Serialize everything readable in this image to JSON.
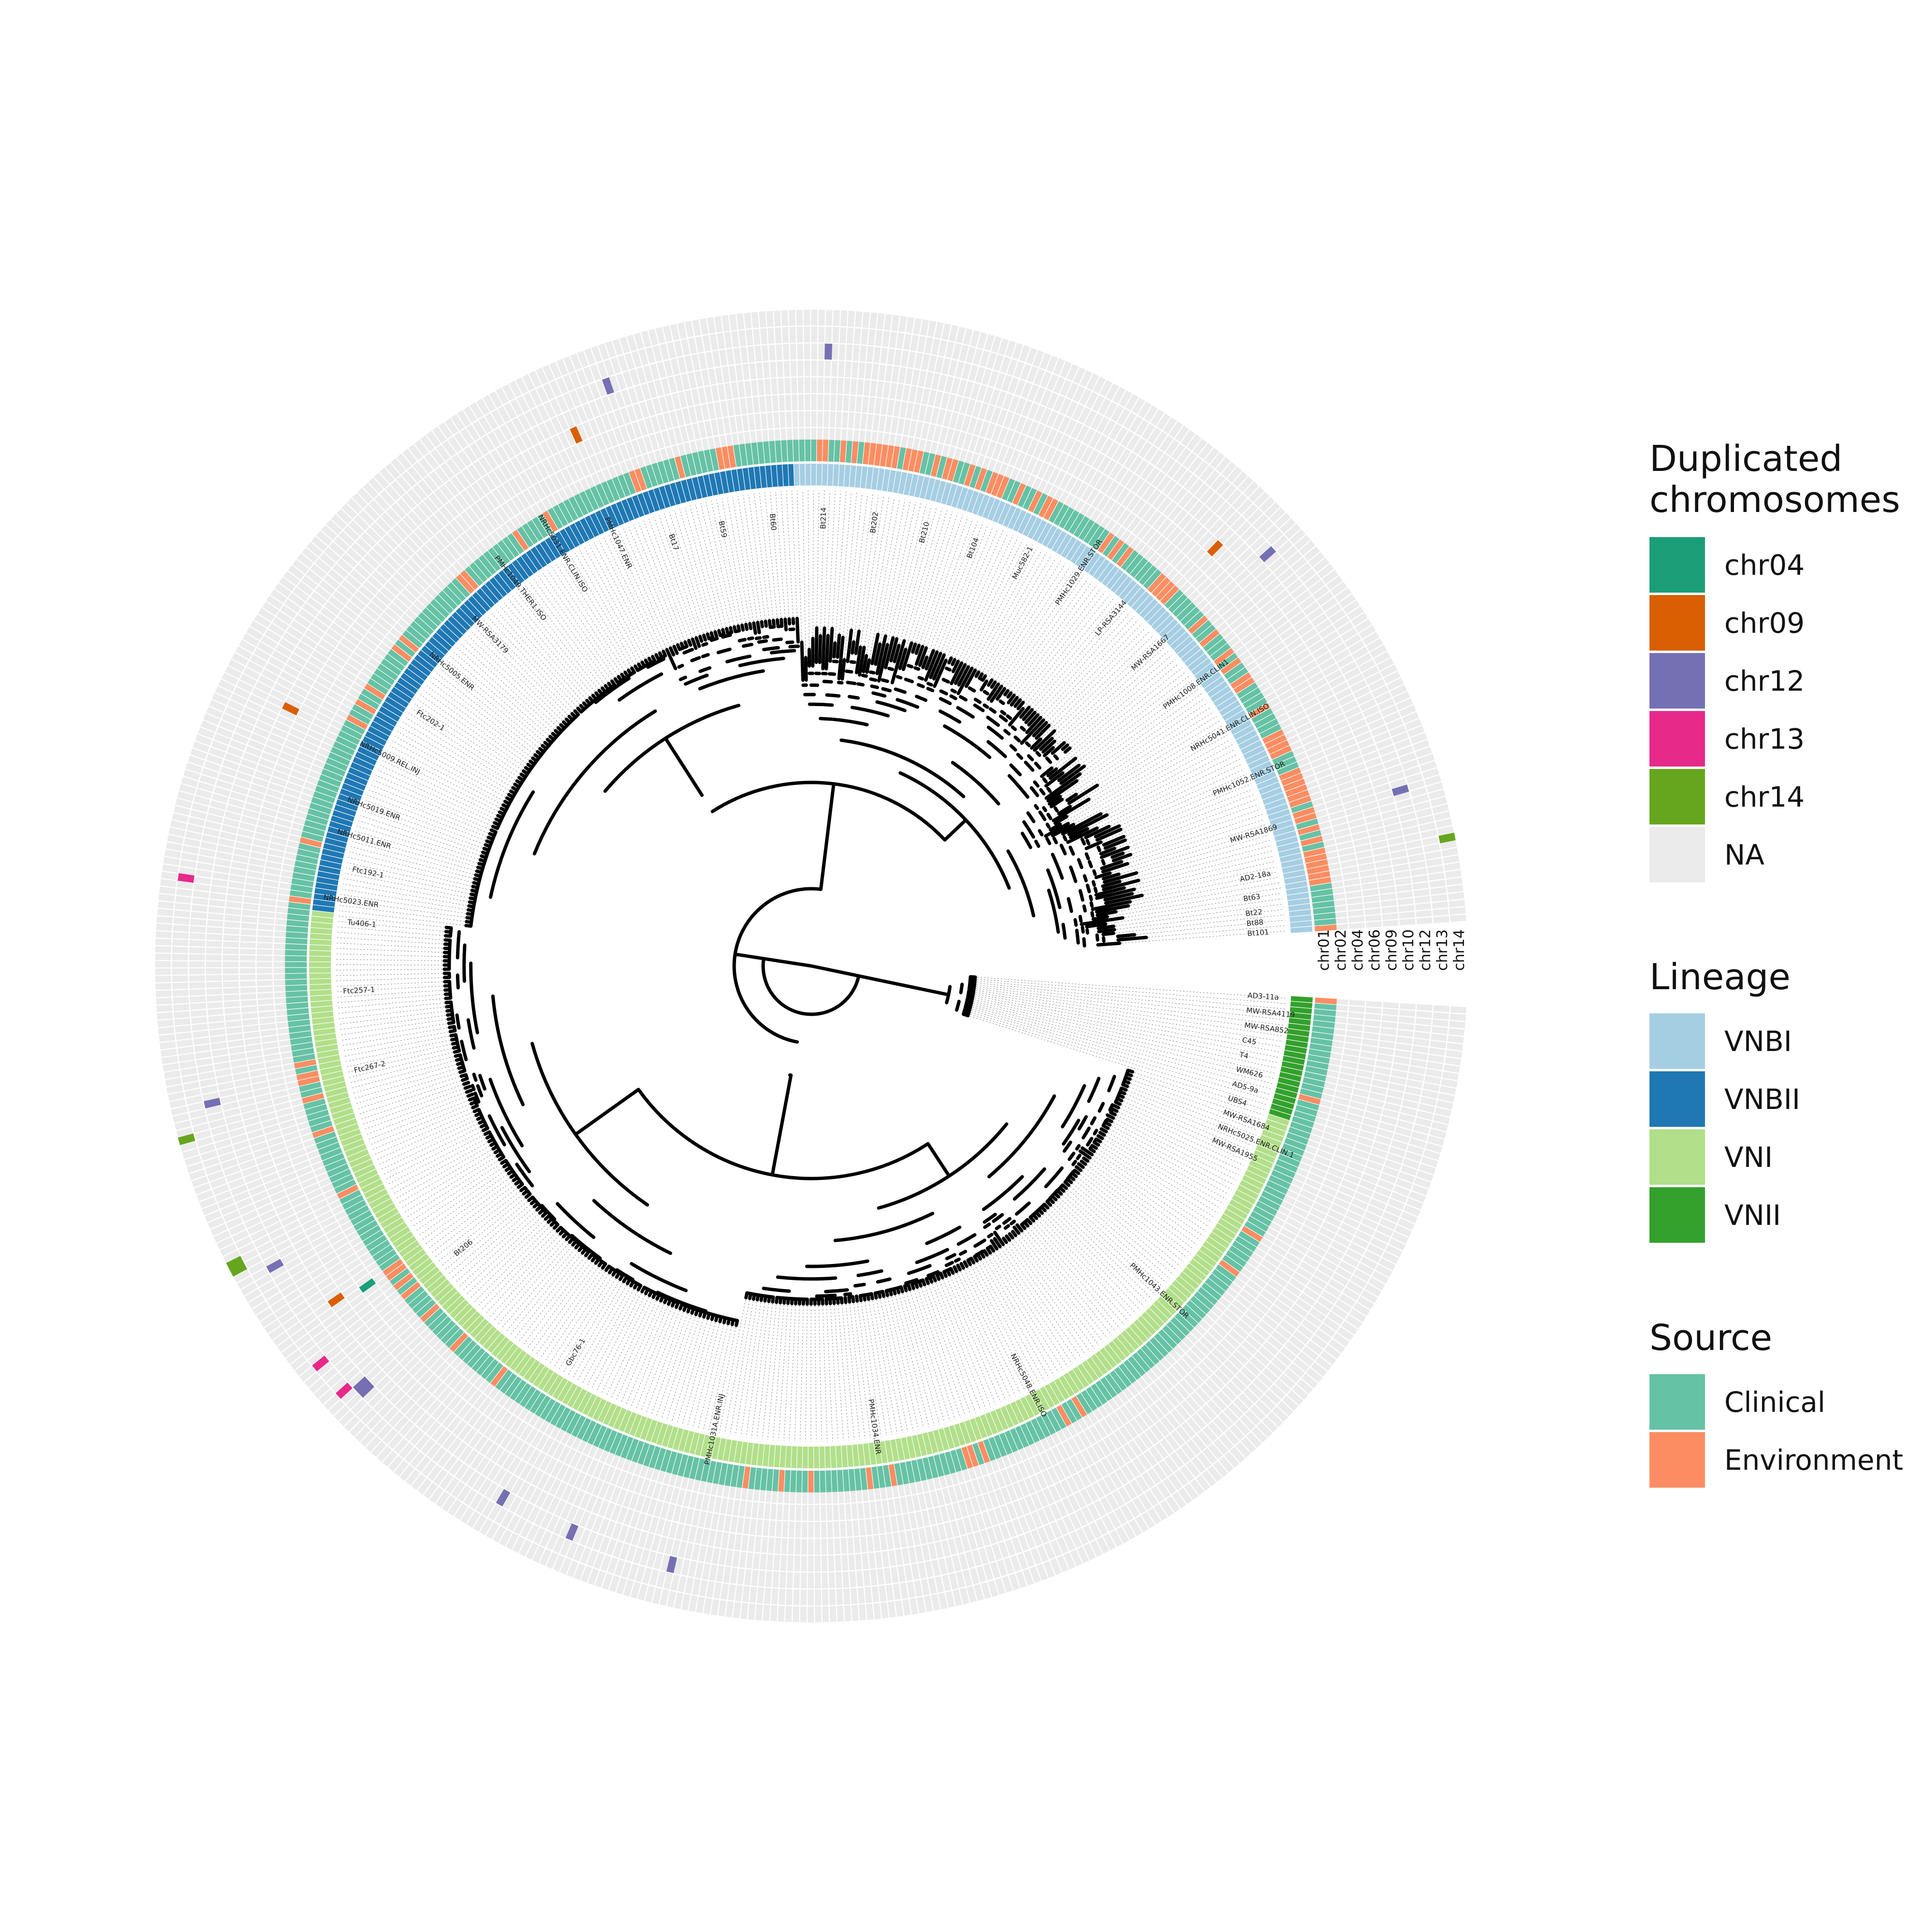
{
  "colors": {
    "na": "#ebebeb",
    "grid": "#ffffff",
    "branch": "#000000",
    "leader": "#9a9a9a",
    "source": {
      "Clinical": "#66c2a5",
      "Environment": "#fc8d62"
    },
    "lineage": {
      "VNBI": "#a6cee3",
      "VNBII": "#1f78b4",
      "VNI": "#b2df8a",
      "VNII": "#33a02c"
    },
    "chromosomes": {
      "chr04": "#1b9e77",
      "chr09": "#d95f02",
      "chr12": "#7570b3",
      "chr13": "#e7298a",
      "chr14": "#66a61e"
    }
  },
  "ring_labels": [
    "chr01",
    "chr02",
    "chr04",
    "chr06",
    "chr09",
    "chr10",
    "chr12",
    "chr13",
    "chr14"
  ],
  "duplications": [
    {
      "chrom": "chr12",
      "leaf": 152
    },
    {
      "chrom": "chr12",
      "leaf": 167
    },
    {
      "chrom": "chr12",
      "leaf": 178
    },
    {
      "chrom": "chr12",
      "leaf": 203
    },
    {
      "chrom": "chr12",
      "leaf": 204
    },
    {
      "chrom": "chr13",
      "leaf": 205
    },
    {
      "chrom": "chr13",
      "leaf": 210
    },
    {
      "chrom": "chr04",
      "leaf": 215
    },
    {
      "chrom": "chr09",
      "leaf": 216
    },
    {
      "chrom": "chr12",
      "leaf": 225
    },
    {
      "chrom": "chr14",
      "leaf": 227
    },
    {
      "chrom": "chr14",
      "leaf": 228
    },
    {
      "chrom": "chr14",
      "leaf": 246
    },
    {
      "chrom": "chr12",
      "leaf": 250
    },
    {
      "chrom": "chr13",
      "leaf": 282
    },
    {
      "chrom": "chr09",
      "leaf": 310
    },
    {
      "chrom": "chr09",
      "leaf": 371
    },
    {
      "chrom": "chr12",
      "leaf": 378
    },
    {
      "chrom": "chr12",
      "leaf": 410
    },
    {
      "chrom": "chr09",
      "leaf": 475
    },
    {
      "chrom": "chr12",
      "leaf": 481
    },
    {
      "chrom": "chr12",
      "leaf": 520
    },
    {
      "chrom": "chr14",
      "leaf": 528
    }
  ],
  "leaf_labels_sample": [
    "AD3-11a",
    "MW-RSA4119",
    "MW-RSA852",
    "C45",
    "T4",
    "WM626",
    "AD5-9a",
    "UBS4",
    "MW-RSA1684",
    "NRHc5025.ENR.CLIN.1",
    "MW-RSA1955",
    "PMHc1043.ENR.STOR",
    "NRHc5048.ENR.ISO",
    "PMHc1034.ENR",
    "PMHc1031A.ENR.INJ",
    "Gbc76-1",
    "Bt206",
    "Ftc267-2",
    "Ftc257-1",
    "Tu406-1",
    "NRHc5023.ENR",
    "Ftc192-1",
    "NRHc5011.ENR",
    "NRHc5019.ENR",
    "NRHc5009.REL.INJ",
    "Ftc202-1",
    "NRHc5005.ENR",
    "MW-RSA3179",
    "PMHc1049.THER1.ISO",
    "NRHc5031.ENR.CLIN.ISO",
    "PMHc1047.ENR",
    "Bt17",
    "Bt59",
    "Bt60",
    "Bt214",
    "Bt202",
    "Bt210",
    "Bt104",
    "Muc582-1",
    "PMHc1029.ENR.STOR",
    "LP-RSA3144",
    "MW-RSA1667",
    "PMHc1008.ENR.CLIN1",
    "NRHc5041.ENR.CLIN.ISO",
    "PMHc1052.ENR.STOR",
    "MW-RSA1869",
    "AD2-18a",
    "Bt63",
    "Bt22",
    "Bt88",
    "Bt101"
  ],
  "legend": {
    "duplicated": {
      "title_line1": "Duplicated",
      "title_line2": "chromosomes",
      "items": [
        {
          "label": "chr04",
          "key": "chr04"
        },
        {
          "label": "chr09",
          "key": "chr09"
        },
        {
          "label": "chr12",
          "key": "chr12"
        },
        {
          "label": "chr13",
          "key": "chr13"
        },
        {
          "label": "chr14",
          "key": "chr14"
        },
        {
          "label": "NA",
          "key": "na"
        }
      ]
    },
    "lineage": {
      "title": "Lineage",
      "items": [
        {
          "label": "VNBI",
          "key": "VNBI"
        },
        {
          "label": "VNBII",
          "key": "VNBII"
        },
        {
          "label": "VNI",
          "key": "VNI"
        },
        {
          "label": "VNII",
          "key": "VNII"
        }
      ]
    },
    "source": {
      "title": "Source",
      "items": [
        {
          "label": "Clinical",
          "key": "Clinical"
        },
        {
          "label": "Environment",
          "key": "Environment"
        }
      ]
    }
  }
}
